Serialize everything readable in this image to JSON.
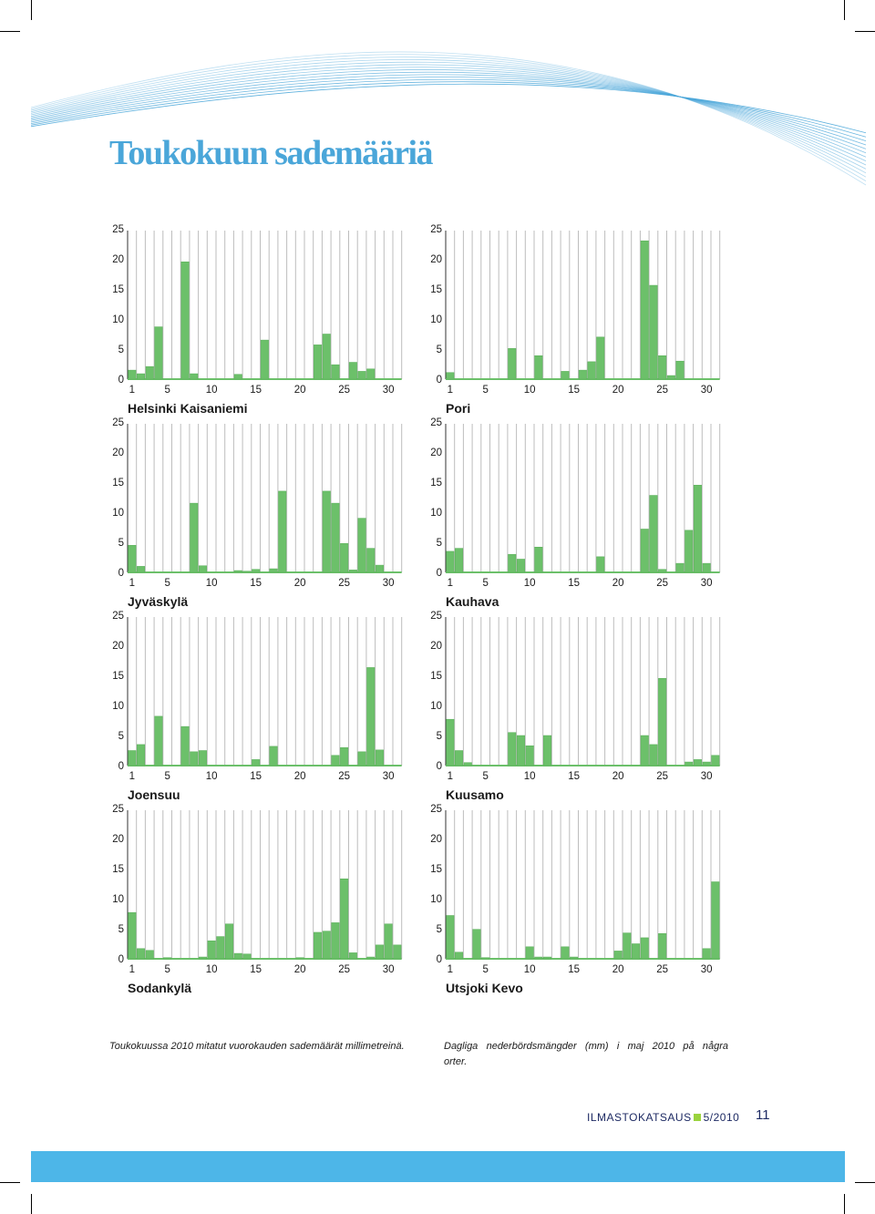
{
  "title": "Toukokuun sademääriä",
  "chart_data": [
    {
      "type": "bar",
      "station": "Helsinki Kaisaniemi",
      "x": [
        1,
        2,
        3,
        4,
        5,
        6,
        7,
        8,
        9,
        10,
        11,
        12,
        13,
        14,
        15,
        16,
        17,
        18,
        19,
        20,
        21,
        22,
        23,
        24,
        25,
        26,
        27,
        28,
        29,
        30,
        31
      ],
      "values": [
        1.5,
        0.9,
        2.1,
        8.7,
        0,
        0,
        19.5,
        0.9,
        0,
        0,
        0,
        0,
        0.8,
        0,
        0,
        6.5,
        0,
        0,
        0,
        0,
        0,
        5.7,
        7.5,
        2.4,
        0,
        2.8,
        1.3,
        1.7,
        0,
        0,
        0
      ],
      "xticks": [
        1,
        5,
        10,
        15,
        20,
        25,
        30
      ],
      "yticks": [
        0,
        5,
        10,
        15,
        20,
        25
      ],
      "ylim": [
        0,
        25
      ]
    },
    {
      "type": "bar",
      "station": "Pori",
      "x": [
        1,
        2,
        3,
        4,
        5,
        6,
        7,
        8,
        9,
        10,
        11,
        12,
        13,
        14,
        15,
        16,
        17,
        18,
        19,
        20,
        21,
        22,
        23,
        24,
        25,
        26,
        27,
        28,
        29,
        30,
        31
      ],
      "values": [
        1.1,
        0,
        0,
        0,
        0,
        0,
        0,
        5.1,
        0,
        0,
        3.9,
        0,
        0,
        1.3,
        0,
        1.5,
        2.9,
        7.0,
        0,
        0,
        0,
        0,
        23.0,
        15.6,
        3.9,
        0.6,
        3.0,
        0,
        0,
        0,
        0
      ],
      "xticks": [
        1,
        5,
        10,
        15,
        20,
        25,
        30
      ],
      "yticks": [
        0,
        5,
        10,
        15,
        20,
        25
      ],
      "ylim": [
        0,
        25
      ]
    },
    {
      "type": "bar",
      "station": "Jyväskylä",
      "x": [
        1,
        2,
        3,
        4,
        5,
        6,
        7,
        8,
        9,
        10,
        11,
        12,
        13,
        14,
        15,
        16,
        17,
        18,
        19,
        20,
        21,
        22,
        23,
        24,
        25,
        26,
        27,
        28,
        29,
        30,
        31
      ],
      "values": [
        4.5,
        1,
        0,
        0,
        0,
        0,
        0,
        11.5,
        1.1,
        0,
        0,
        0,
        0.3,
        0.2,
        0.5,
        0,
        0.6,
        13.5,
        0,
        0,
        0,
        0,
        13.5,
        11.5,
        4.8,
        0.4,
        9.0,
        4.0,
        1.2,
        0,
        0
      ],
      "xticks": [
        1,
        5,
        10,
        15,
        20,
        25,
        30
      ],
      "yticks": [
        0,
        5,
        10,
        15,
        20,
        25
      ],
      "ylim": [
        0,
        25
      ]
    },
    {
      "type": "bar",
      "station": "Kauhava",
      "x": [
        1,
        2,
        3,
        4,
        5,
        6,
        7,
        8,
        9,
        10,
        11,
        12,
        13,
        14,
        15,
        16,
        17,
        18,
        19,
        20,
        21,
        22,
        23,
        24,
        25,
        26,
        27,
        28,
        29,
        30,
        31
      ],
      "values": [
        3.5,
        4.0,
        0,
        0,
        0,
        0,
        0,
        3.0,
        2.2,
        0,
        4.2,
        0,
        0,
        0,
        0,
        0,
        0,
        2.6,
        0,
        0,
        0,
        0,
        7.2,
        12.8,
        0.5,
        0,
        1.5,
        7.0,
        14.5,
        1.5,
        0
      ],
      "xticks": [
        1,
        5,
        10,
        15,
        20,
        25,
        30
      ],
      "yticks": [
        0,
        5,
        10,
        15,
        20,
        25
      ],
      "ylim": [
        0,
        25
      ]
    },
    {
      "type": "bar",
      "station": "Joensuu",
      "x": [
        1,
        2,
        3,
        4,
        5,
        6,
        7,
        8,
        9,
        10,
        11,
        12,
        13,
        14,
        15,
        16,
        17,
        18,
        19,
        20,
        21,
        22,
        23,
        24,
        25,
        26,
        27,
        28,
        29,
        30,
        31
      ],
      "values": [
        2.5,
        3.5,
        0,
        8.2,
        0,
        0,
        6.5,
        2.3,
        2.5,
        0,
        0,
        0,
        0,
        0,
        1.0,
        0,
        3.2,
        0,
        0,
        0,
        0,
        0,
        0,
        1.7,
        3.0,
        0,
        2.3,
        16.3,
        2.6,
        0,
        0
      ],
      "xticks": [
        1,
        5,
        10,
        15,
        20,
        25,
        30
      ],
      "yticks": [
        0,
        5,
        10,
        15,
        20,
        25
      ],
      "ylim": [
        0,
        25
      ]
    },
    {
      "type": "bar",
      "station": "Kuusamo",
      "x": [
        1,
        2,
        3,
        4,
        5,
        6,
        7,
        8,
        9,
        10,
        11,
        12,
        13,
        14,
        15,
        16,
        17,
        18,
        19,
        20,
        21,
        22,
        23,
        24,
        25,
        26,
        27,
        28,
        29,
        30,
        31
      ],
      "values": [
        7.7,
        2.5,
        0.5,
        0,
        0,
        0,
        0,
        5.5,
        5.0,
        3.3,
        0,
        5.0,
        0,
        0,
        0,
        0,
        0,
        0,
        0,
        0,
        0,
        0,
        5.0,
        3.5,
        14.5,
        0,
        0,
        0.6,
        1.0,
        0.6,
        1.7
      ],
      "xticks": [
        1,
        5,
        10,
        15,
        20,
        25,
        30
      ],
      "yticks": [
        0,
        5,
        10,
        15,
        20,
        25
      ],
      "ylim": [
        0,
        25
      ]
    },
    {
      "type": "bar",
      "station": "Sodankylä",
      "x": [
        1,
        2,
        3,
        4,
        5,
        6,
        7,
        8,
        9,
        10,
        11,
        12,
        13,
        14,
        15,
        16,
        17,
        18,
        19,
        20,
        21,
        22,
        23,
        24,
        25,
        26,
        27,
        28,
        29,
        30,
        31
      ],
      "values": [
        7.7,
        1.7,
        1.4,
        0,
        0.2,
        0,
        0,
        0,
        0.3,
        3.0,
        3.7,
        5.8,
        0.9,
        0.8,
        0,
        0,
        0,
        0,
        0,
        0.2,
        0,
        4.4,
        4.6,
        6.0,
        13.3,
        1.0,
        0,
        0.3,
        2.3,
        5.8,
        2.3
      ],
      "xticks": [
        1,
        5,
        10,
        15,
        20,
        25,
        30
      ],
      "yticks": [
        0,
        5,
        10,
        15,
        20,
        25
      ],
      "ylim": [
        0,
        25
      ]
    },
    {
      "type": "bar",
      "station": "Utsjoki Kevo",
      "x": [
        1,
        2,
        3,
        4,
        5,
        6,
        7,
        8,
        9,
        10,
        11,
        12,
        13,
        14,
        15,
        16,
        17,
        18,
        19,
        20,
        21,
        22,
        23,
        24,
        25,
        26,
        27,
        28,
        29,
        30,
        31
      ],
      "values": [
        7.2,
        1.1,
        0,
        4.9,
        0.2,
        0,
        0,
        0,
        0,
        2.0,
        0.3,
        0.3,
        0,
        2.0,
        0.3,
        0,
        0,
        0,
        0,
        1.3,
        4.3,
        2.5,
        3.5,
        0,
        4.2,
        0,
        0,
        0,
        0,
        1.7,
        12.8
      ],
      "xticks": [
        1,
        5,
        10,
        15,
        20,
        25,
        30
      ],
      "yticks": [
        0,
        5,
        10,
        15,
        20,
        25
      ],
      "ylim": [
        0,
        25
      ]
    }
  ],
  "captions": {
    "fi": "Toukokuussa 2010 mitatut vuorokauden sademäärät millimetreinä.",
    "sv": "Dagliga nederbördsmängder (mm) i maj 2010 på några orter."
  },
  "footer": {
    "magazine": "ILMASTOKATSAUS",
    "issue": "5/2010",
    "page": "11"
  },
  "colors": {
    "bar": "#6cc06a",
    "bar_edge": "#58ad57",
    "grid": "#bdbdbd",
    "title": "#4aa6d9",
    "footer_text": "#1d2a63",
    "footer_square": "#9ad33d",
    "band": "#4db6e8",
    "swoosh": "#4aa6d9"
  }
}
